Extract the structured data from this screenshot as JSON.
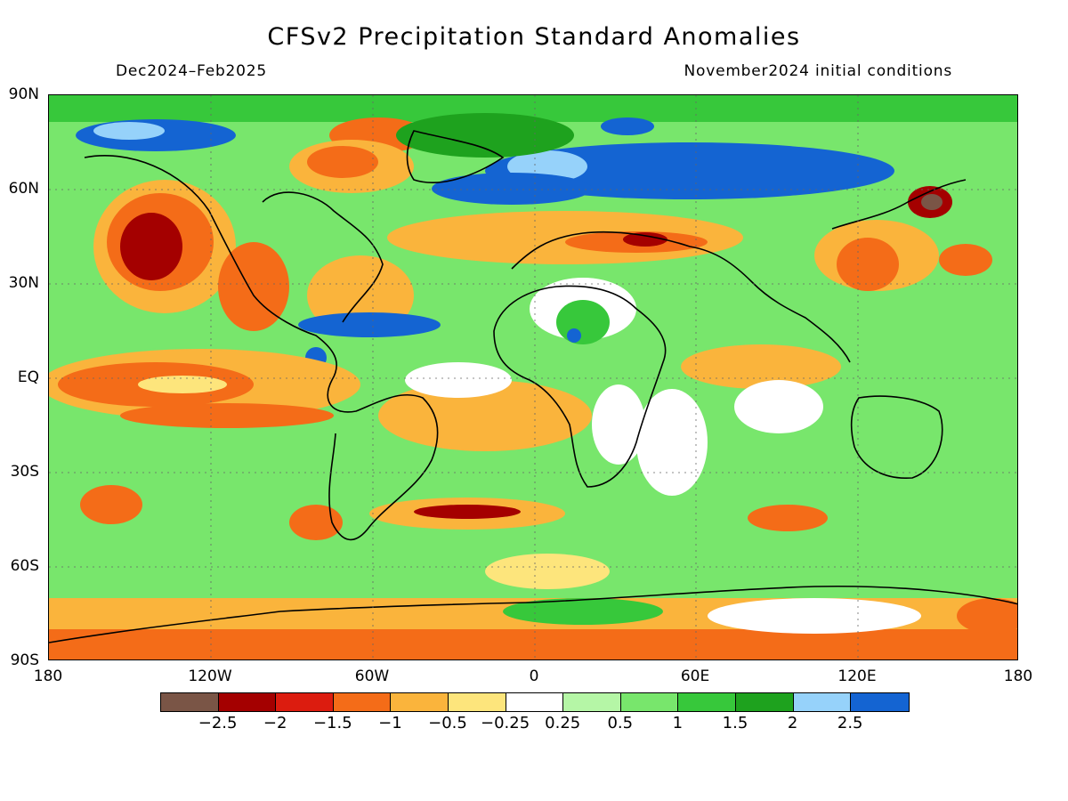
{
  "title": "CFSv2 Precipitation Standard Anomalies",
  "period": "Dec2024–Feb2025",
  "init": "November2024 initial conditions",
  "lat_labels": [
    "90N",
    "60N",
    "30N",
    "EQ",
    "30S",
    "60S",
    "90S"
  ],
  "lon_labels": [
    "180",
    "120W",
    "60W",
    "0",
    "60E",
    "120E",
    "180"
  ],
  "colorbar": {
    "colors": [
      "#7a5546",
      "#a40000",
      "#dc1c0f",
      "#f46c18",
      "#fab43c",
      "#fde57c",
      "#ffffff",
      "#b5f6a6",
      "#78e66c",
      "#37c83b",
      "#1ea21e",
      "#96d2fa",
      "#1464d2"
    ],
    "labels": [
      "−2.5",
      "−2",
      "−1.5",
      "−1",
      "−0.5",
      "−0.25",
      "0.25",
      "0.5",
      "1",
      "1.5",
      "2",
      "2.5"
    ]
  }
}
